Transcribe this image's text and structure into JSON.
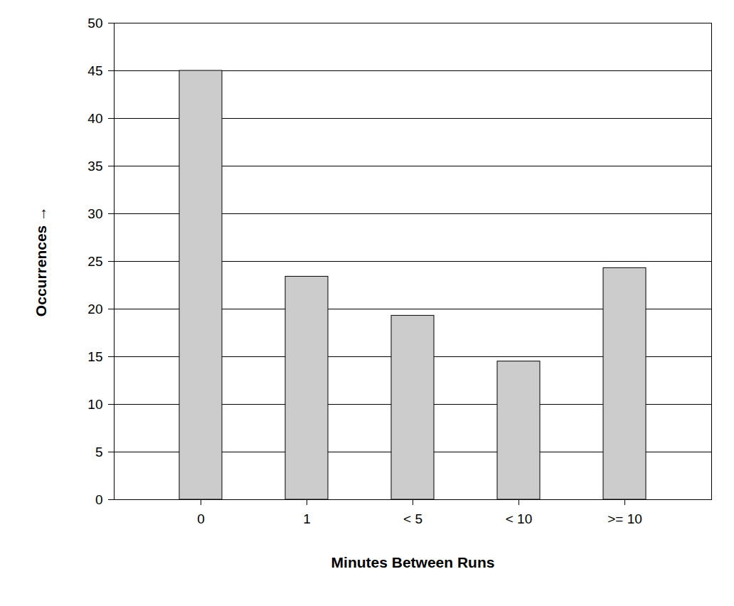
{
  "chart_data": {
    "type": "bar",
    "x_label": "Minutes Between Runs",
    "y_label": "Occurrences",
    "categories": [
      "0",
      "1",
      "< 5",
      "< 10",
      ">= 10"
    ],
    "values": [
      45,
      23.4,
      19.3,
      14.5,
      24.3
    ],
    "color": "#cccccc",
    "ylim": [
      0,
      50
    ],
    "yticks": [
      0,
      5,
      10,
      15,
      20,
      25,
      30,
      35,
      40,
      45,
      50
    ],
    "grid": true
  }
}
